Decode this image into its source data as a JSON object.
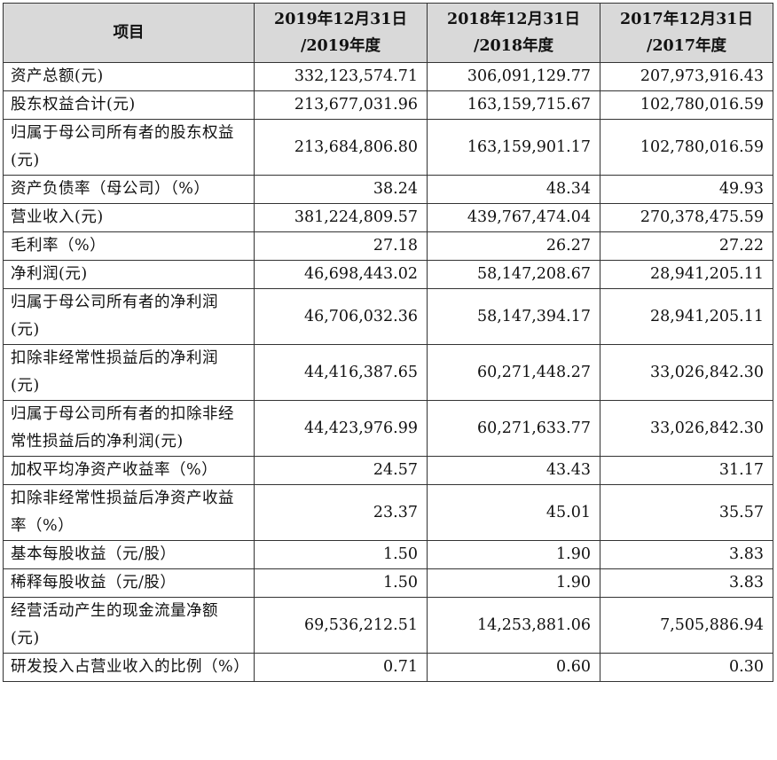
{
  "table": {
    "headers": [
      "项目",
      "2019年12月31日 /2019年度",
      "2018年12月31日 /2018年度",
      "2017年12月31日 /2017年度"
    ],
    "header_lines": [
      [
        "项目"
      ],
      [
        "2019年12月31日",
        "/2019年度"
      ],
      [
        "2018年12月31日",
        "/2018年度"
      ],
      [
        "2017年12月31日",
        "/2017年度"
      ]
    ],
    "rows": [
      {
        "label": "资产总额(元)",
        "values": [
          "332,123,574.71",
          "306,091,129.77",
          "207,973,916.43"
        ]
      },
      {
        "label": "股东权益合计(元)",
        "values": [
          "213,677,031.96",
          "163,159,715.67",
          "102,780,016.59"
        ]
      },
      {
        "label": "归属于母公司所有者的股东权益(元)",
        "values": [
          "213,684,806.80",
          "163,159,901.17",
          "102,780,016.59"
        ]
      },
      {
        "label": "资产负债率（母公司）（%）",
        "values": [
          "38.24",
          "48.34",
          "49.93"
        ]
      },
      {
        "label": "营业收入(元)",
        "values": [
          "381,224,809.57",
          "439,767,474.04",
          "270,378,475.59"
        ]
      },
      {
        "label": "毛利率（%）",
        "values": [
          "27.18",
          "26.27",
          "27.22"
        ]
      },
      {
        "label": "净利润(元)",
        "values": [
          "46,698,443.02",
          "58,147,208.67",
          "28,941,205.11"
        ]
      },
      {
        "label": "归属于母公司所有者的净利润(元)",
        "values": [
          "46,706,032.36",
          "58,147,394.17",
          "28,941,205.11"
        ]
      },
      {
        "label": "扣除非经常性损益后的净利润(元)",
        "values": [
          "44,416,387.65",
          "60,271,448.27",
          "33,026,842.30"
        ]
      },
      {
        "label": "归属于母公司所有者的扣除非经常性损益后的净利润(元)",
        "values": [
          "44,423,976.99",
          "60,271,633.77",
          "33,026,842.30"
        ]
      },
      {
        "label": "加权平均净资产收益率（%）",
        "values": [
          "24.57",
          "43.43",
          "31.17"
        ]
      },
      {
        "label": "扣除非经常性损益后净资产收益率（%）",
        "values": [
          "23.37",
          "45.01",
          "35.57"
        ]
      },
      {
        "label": "基本每股收益（元/股）",
        "values": [
          "1.50",
          "1.90",
          "3.83"
        ]
      },
      {
        "label": "稀释每股收益（元/股）",
        "values": [
          "1.50",
          "1.90",
          "3.83"
        ]
      },
      {
        "label": "经营活动产生的现金流量净额(元)",
        "values": [
          "69,536,212.51",
          "14,253,881.06",
          "7,505,886.94"
        ]
      },
      {
        "label": "研发投入占营业收入的比例（%）",
        "values": [
          "0.71",
          "0.60",
          "0.30"
        ]
      }
    ]
  },
  "colors": {
    "header_bg": "#d9d9d9",
    "border": "#333333",
    "text": "#111111"
  }
}
